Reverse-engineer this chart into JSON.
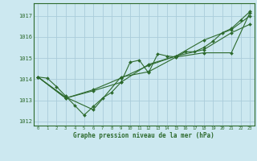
{
  "title": "Graphe pression niveau de la mer (hPa)",
  "bg_color": "#cce8f0",
  "grid_color": "#aaccda",
  "line_color": "#2d6a2d",
  "xlim": [
    -0.5,
    23.5
  ],
  "ylim": [
    1011.8,
    1017.6
  ],
  "yticks": [
    1012,
    1013,
    1014,
    1015,
    1016,
    1017
  ],
  "xticks": [
    0,
    1,
    2,
    3,
    4,
    5,
    6,
    7,
    8,
    9,
    10,
    11,
    12,
    13,
    14,
    15,
    16,
    17,
    18,
    19,
    20,
    21,
    22,
    23
  ],
  "series": [
    {
      "x": [
        0,
        1,
        2,
        3,
        4,
        5,
        6,
        7,
        8,
        9,
        10,
        11,
        12,
        13,
        14,
        15,
        16,
        17,
        18,
        19,
        20,
        21,
        22,
        23
      ],
      "y": [
        1014.1,
        1014.05,
        1013.65,
        1013.2,
        1012.75,
        1012.3,
        1012.7,
        1013.1,
        1013.38,
        1013.85,
        1014.8,
        1014.9,
        1014.3,
        1015.2,
        1015.1,
        1015.05,
        1015.3,
        1015.3,
        1015.5,
        1015.8,
        1016.2,
        1016.4,
        1016.8,
        1017.2
      ]
    },
    {
      "x": [
        0,
        3,
        6,
        9,
        12,
        15,
        18,
        21,
        23
      ],
      "y": [
        1014.1,
        1013.15,
        1012.55,
        1014.1,
        1014.35,
        1015.05,
        1015.25,
        1015.25,
        1017.15
      ]
    },
    {
      "x": [
        0,
        3,
        6,
        9,
        12,
        15,
        18,
        21,
        23
      ],
      "y": [
        1014.1,
        1013.1,
        1013.5,
        1014.05,
        1014.65,
        1015.1,
        1015.85,
        1016.35,
        1017.0
      ]
    },
    {
      "x": [
        0,
        3,
        6,
        9,
        12,
        15,
        18,
        21,
        23
      ],
      "y": [
        1014.1,
        1013.1,
        1013.45,
        1013.85,
        1014.7,
        1015.1,
        1015.4,
        1016.2,
        1016.6
      ]
    }
  ]
}
